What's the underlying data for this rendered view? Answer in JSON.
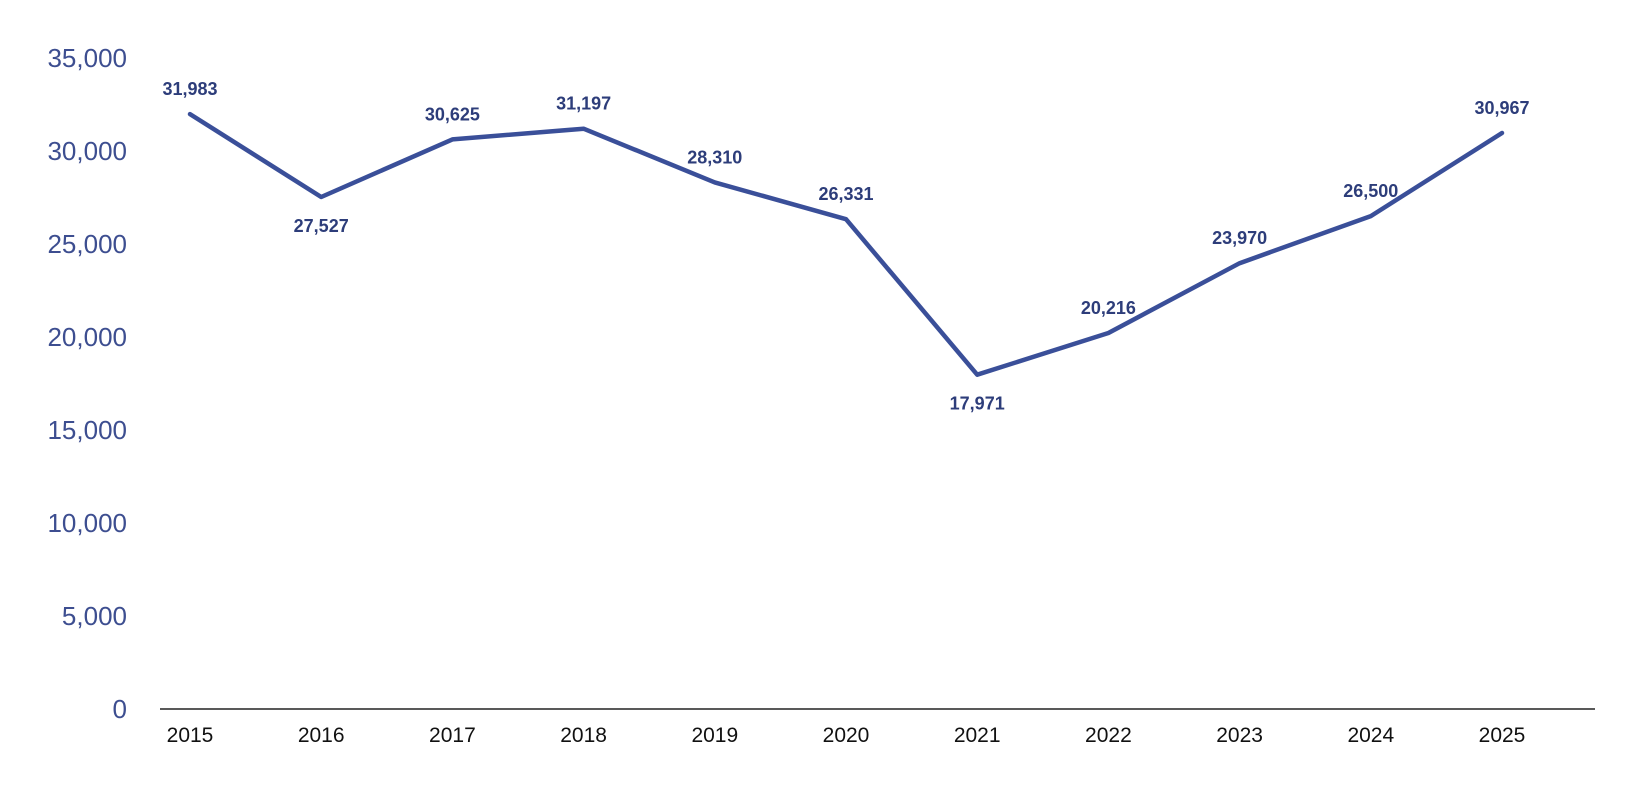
{
  "chart_data": {
    "type": "line",
    "title": "",
    "xlabel": "",
    "ylabel": "",
    "x": [
      "2015",
      "2016",
      "2017",
      "2018",
      "2019",
      "2020",
      "2021",
      "2022",
      "2023",
      "2024",
      "2025"
    ],
    "series": [
      {
        "values": [
          31983,
          27527,
          30625,
          31197,
          28310,
          26331,
          17971,
          20216,
          23970,
          26500,
          30967
        ],
        "labels": [
          "31,983",
          "27,527",
          "30,625",
          "31,197",
          "28,310",
          "26,331",
          "17,971",
          "20,216",
          "23,970",
          "26,500",
          "30,967"
        ],
        "label_positions": [
          "above",
          "below",
          "above",
          "above",
          "above",
          "above",
          "below",
          "above",
          "above",
          "above",
          "above"
        ],
        "color": "#3a4f99"
      }
    ],
    "ylim": [
      0,
      35000
    ],
    "yticks": [
      0,
      5000,
      10000,
      15000,
      20000,
      25000,
      30000,
      35000
    ],
    "ytick_labels": [
      "0",
      "5,000",
      "10,000",
      "15,000",
      "20,000",
      "25,000",
      "30,000",
      "35,000"
    ],
    "grid": false,
    "legend": "none"
  }
}
